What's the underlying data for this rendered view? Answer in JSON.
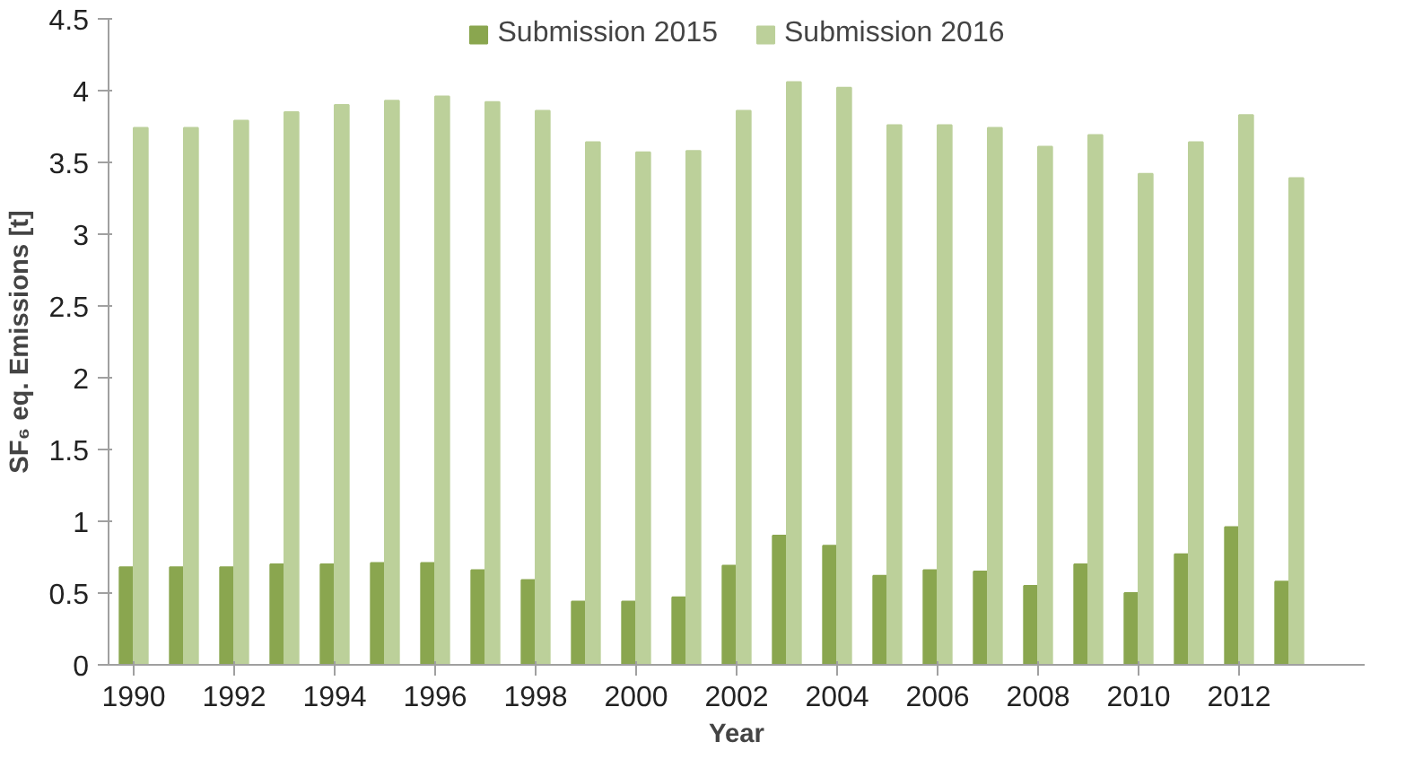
{
  "chart_data": {
    "type": "bar",
    "xlabel": "Year",
    "ylabel": "SF₆ eq. Emissions [t]",
    "x": [
      1990,
      1991,
      1992,
      1993,
      1994,
      1995,
      1996,
      1997,
      1998,
      1999,
      2000,
      2001,
      2002,
      2003,
      2004,
      2005,
      2006,
      2007,
      2008,
      2009,
      2010,
      2011,
      2012,
      2013
    ],
    "series": [
      {
        "name": "Submission 2015",
        "color": "#8aa64f",
        "values": [
          0.68,
          0.68,
          0.68,
          0.7,
          0.7,
          0.71,
          0.71,
          0.66,
          0.59,
          0.44,
          0.44,
          0.47,
          0.69,
          0.9,
          0.83,
          0.62,
          0.66,
          0.65,
          0.55,
          0.7,
          0.5,
          0.77,
          0.96,
          0.58
        ]
      },
      {
        "name": "Submission 2016",
        "color": "#bcd09a",
        "values": [
          3.74,
          3.74,
          3.79,
          3.85,
          3.9,
          3.93,
          3.96,
          3.92,
          3.86,
          3.64,
          3.57,
          3.58,
          3.86,
          4.06,
          4.02,
          3.76,
          3.76,
          3.74,
          3.61,
          3.69,
          3.42,
          3.64,
          3.83,
          3.39
        ]
      }
    ],
    "xlim": [
      1989.5,
      2014.5
    ],
    "xticks": [
      1990,
      1992,
      1994,
      1996,
      1998,
      2000,
      2002,
      2004,
      2006,
      2008,
      2010,
      2012
    ],
    "ylim": [
      0,
      4.5
    ],
    "yticks": [
      0,
      0.5,
      1,
      1.5,
      2,
      2.5,
      3,
      3.5,
      4,
      4.5
    ],
    "grid": false,
    "legend": "top"
  }
}
